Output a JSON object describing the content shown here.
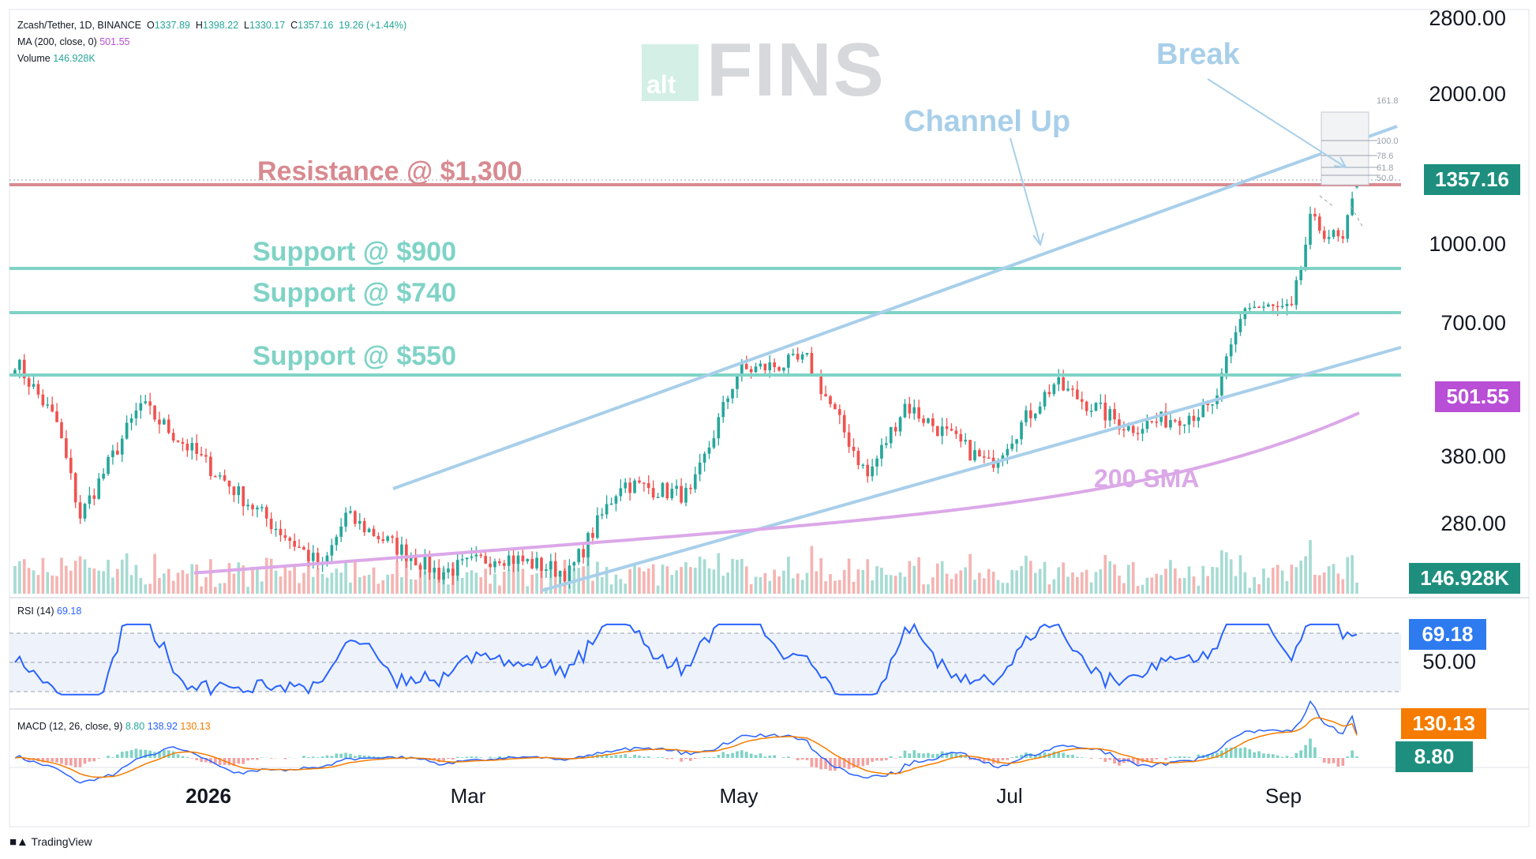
{
  "header": {
    "symbol": "Zcash/Tether, 1D, BINANCE",
    "o_label": "O",
    "o": "1337.89",
    "h_label": "H",
    "h": "1398.22",
    "l_label": "L",
    "l": "1330.17",
    "c_label": "C",
    "c": "1357.16",
    "change": "19.26 (+1.44%)",
    "ma_label": "MA (200, close, 0)",
    "ma_value": "501.55",
    "volume_label": "Volume",
    "volume_value": "146.928K"
  },
  "watermark": {
    "box_text": "alt",
    "word": "FINS"
  },
  "price_axis": {
    "ticks": [
      {
        "label": "2800.00",
        "value": 2800
      },
      {
        "label": "2000.00",
        "value": 2000
      },
      {
        "label": "1000.00",
        "value": 1000
      },
      {
        "label": "700.00",
        "value": 700
      },
      {
        "label": "380.00",
        "value": 380
      },
      {
        "label": "280.00",
        "value": 280
      }
    ]
  },
  "badges": {
    "last_price": "1357.16",
    "sma": "501.55",
    "volume": "146.928K",
    "rsi": "69.18",
    "rsi_mid": "50.00",
    "macd_signal": "130.13",
    "macd_line": "8.80"
  },
  "colors": {
    "up": "#26a69a",
    "down": "#ef5350",
    "resistance": "#d88a90",
    "support": "#7fd3c6",
    "channel": "#a8cfea",
    "sma": "#dba8e8",
    "rsi": "#2962ff",
    "macd": "#2962ff",
    "signal": "#f57c00",
    "badge_green": "#1e8f7e",
    "badge_purple": "#b84fd6",
    "badge_blue": "#2e7bf0",
    "badge_orange": "#f57c00"
  },
  "annotations": {
    "resistance": "Resistance @ $1,300",
    "support_900": "Support @ $900",
    "support_740": "Support @ $740",
    "support_550": "Support @ $550",
    "channel": "Channel Up",
    "break": "Break",
    "sma": "200 SMA"
  },
  "fib_labels": [
    "161.8",
    "100.0",
    "78.6",
    "61.8",
    "50.0"
  ],
  "indicators": {
    "rsi_label": "RSI (14)",
    "rsi_value": "69.18",
    "macd_label": "MACD (12, 26, close, 9)",
    "macd_hist": "8.80",
    "macd_value": "138.92",
    "signal_value": "130.13"
  },
  "x_axis": [
    {
      "label": "2026",
      "bold": true
    },
    {
      "label": "Mar",
      "bold": false
    },
    {
      "label": "May",
      "bold": false
    },
    {
      "label": "Jul",
      "bold": false
    },
    {
      "label": "Sep",
      "bold": false
    }
  ],
  "footer": {
    "brand": "TradingView"
  },
  "chart_data": {
    "type": "candlestick",
    "title": "Zcash/Tether, 1D, BINANCE",
    "y_scale": "log",
    "ylim": [
      230,
      2900
    ],
    "support_levels": [
      900,
      740,
      550
    ],
    "resistance_levels": [
      1300
    ],
    "last": {
      "open": 1337.89,
      "high": 1398.22,
      "low": 1330.17,
      "close": 1357.16
    },
    "sma200_last": 501.55,
    "rsi_last": 69.18,
    "macd_last": 138.92,
    "signal_last": 130.13,
    "hist_last": 8.8,
    "path_anchors": [
      {
        "date": "2025-12-01",
        "close": 630
      },
      {
        "date": "2025-12-10",
        "close": 480
      },
      {
        "date": "2025-12-15",
        "close": 320
      },
      {
        "date": "2025-12-28",
        "close": 520
      },
      {
        "date": "2026-01-10",
        "close": 410
      },
      {
        "date": "2026-01-20",
        "close": 340
      },
      {
        "date": "2026-02-05",
        "close": 255
      },
      {
        "date": "2026-02-10",
        "close": 320
      },
      {
        "date": "2026-03-02",
        "close": 250
      },
      {
        "date": "2026-03-15",
        "close": 270
      },
      {
        "date": "2026-03-30",
        "close": 250
      },
      {
        "date": "2026-04-10",
        "close": 370
      },
      {
        "date": "2026-04-25",
        "close": 350
      },
      {
        "date": "2026-05-05",
        "close": 600
      },
      {
        "date": "2026-05-20",
        "close": 630
      },
      {
        "date": "2026-06-02",
        "close": 380
      },
      {
        "date": "2026-06-10",
        "close": 520
      },
      {
        "date": "2026-06-28",
        "close": 400
      },
      {
        "date": "2026-07-12",
        "close": 570
      },
      {
        "date": "2026-07-28",
        "close": 470
      },
      {
        "date": "2026-08-15",
        "close": 510
      },
      {
        "date": "2026-08-22",
        "close": 800
      },
      {
        "date": "2026-09-01",
        "close": 780
      },
      {
        "date": "2026-09-05",
        "close": 1150
      },
      {
        "date": "2026-09-12",
        "close": 1050
      },
      {
        "date": "2026-09-15",
        "close": 1357.16
      }
    ]
  }
}
